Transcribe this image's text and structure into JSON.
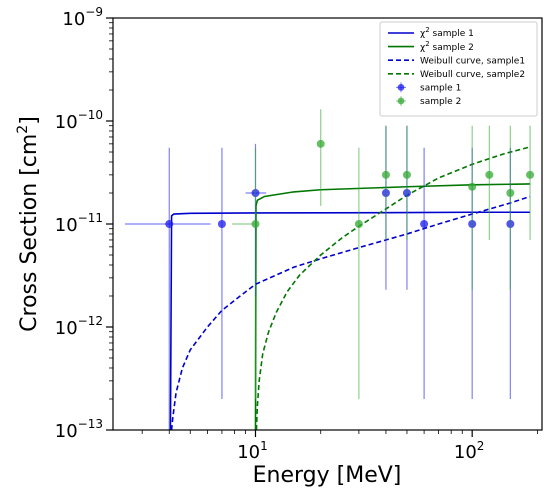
{
  "chart_data": {
    "type": "scatter",
    "xlabel": "Energy [MeV]",
    "ylabel_main": "Cross Section [cm",
    "ylabel_sup": "2",
    "ylabel_end": "]",
    "x_scale": "log",
    "y_scale": "log",
    "xlim": [
      2.2,
      210
    ],
    "ylim": [
      1e-13,
      1e-09
    ],
    "grid": false,
    "legend_position": "top-right",
    "x_ticks": [
      {
        "value": 10,
        "base": "10",
        "exp": "1"
      },
      {
        "value": 100,
        "base": "10",
        "exp": "2"
      }
    ],
    "y_ticks": [
      {
        "value": 1e-13,
        "base": "10",
        "exp": "−13"
      },
      {
        "value": 1e-12,
        "base": "10",
        "exp": "−12"
      },
      {
        "value": 1e-11,
        "base": "10",
        "exp": "−11"
      },
      {
        "value": 1e-10,
        "base": "10",
        "exp": "−10"
      },
      {
        "value": 1e-09,
        "base": "10",
        "exp": "−9"
      }
    ],
    "series": [
      {
        "name": "χ² sample 1",
        "name_parts": [
          "χ",
          "2",
          " sample 1"
        ],
        "kind": "line",
        "style": "solid",
        "color": "#0000cc",
        "x": [
          4.05,
          4.1,
          4.2,
          5,
          10,
          50,
          100,
          185
        ],
        "y": [
          1e-13,
          1.2e-11,
          1.25e-11,
          1.27e-11,
          1.28e-11,
          1.29e-11,
          1.3e-11,
          1.3e-11
        ]
      },
      {
        "name": "χ² sample 2",
        "name_parts": [
          "χ",
          "2",
          " sample 2"
        ],
        "kind": "line",
        "style": "solid",
        "color": "#007700",
        "x": [
          10,
          10.05,
          10.2,
          11,
          15,
          20,
          50,
          100,
          185
        ],
        "y": [
          1e-13,
          1.5e-11,
          1.7e-11,
          1.85e-11,
          2.05e-11,
          2.15e-11,
          2.3e-11,
          2.4e-11,
          2.45e-11
        ]
      },
      {
        "name": "Weibull curve, sample1",
        "kind": "line",
        "style": "dashed",
        "color": "#0000cc",
        "x": [
          4.1,
          4.15,
          4.3,
          4.6,
          5,
          6,
          7,
          8.5,
          10,
          15,
          20,
          30,
          50,
          70,
          100,
          150,
          185
        ],
        "y": [
          1e-13,
          1.3e-13,
          2.3e-13,
          4e-13,
          6e-13,
          1e-12,
          1.45e-12,
          2e-12,
          2.6e-12,
          3.8e-12,
          4.6e-12,
          5.9e-12,
          8e-12,
          1e-11,
          1.25e-11,
          1.6e-11,
          1.85e-11
        ]
      },
      {
        "name": "Weibull curve, sample2",
        "kind": "line",
        "style": "dashed",
        "color": "#007700",
        "x": [
          10.1,
          10.2,
          10.4,
          10.8,
          11.5,
          12.5,
          14,
          16,
          20,
          25,
          30,
          40,
          50,
          70,
          100,
          140,
          185
        ],
        "y": [
          1e-13,
          1.7e-13,
          3e-13,
          5.5e-13,
          9e-13,
          1.4e-12,
          2.2e-12,
          3.2e-12,
          5e-12,
          7.3e-12,
          9.5e-12,
          1.4e-11,
          1.9e-11,
          2.8e-11,
          3.8e-11,
          4.8e-11,
          5.6e-11
        ]
      },
      {
        "name": "sample 1",
        "kind": "points",
        "color": "#1a1aee",
        "points": [
          {
            "x": 4,
            "y": 1e-11,
            "xlo": 2.5,
            "xhi": 6.2,
            "ylo": 1e-13,
            "yhi": 5.5e-11
          },
          {
            "x": 7,
            "y": 1e-11,
            "xlo": 7,
            "xhi": 7,
            "ylo": 2e-13,
            "yhi": 5.5e-11
          },
          {
            "x": 10,
            "y": 2e-11,
            "xlo": 9,
            "xhi": 11.2,
            "ylo": 2e-12,
            "yhi": 6e-11
          },
          {
            "x": 40,
            "y": 2e-11,
            "xlo": 40,
            "xhi": 40,
            "ylo": 2.3e-12,
            "yhi": 9e-11
          },
          {
            "x": 50,
            "y": 2e-11,
            "xlo": 50,
            "xhi": 50,
            "ylo": 2.3e-12,
            "yhi": 9e-11
          },
          {
            "x": 60,
            "y": 1e-11,
            "xlo": 60,
            "xhi": 60,
            "ylo": 2e-13,
            "yhi": 5.5e-11
          },
          {
            "x": 100,
            "y": 1e-11,
            "xlo": 100,
            "xhi": 100,
            "ylo": 2e-13,
            "yhi": 5.5e-11
          },
          {
            "x": 150,
            "y": 1e-11,
            "xlo": 150,
            "xhi": 150,
            "ylo": 2e-13,
            "yhi": 5.5e-11
          }
        ]
      },
      {
        "name": "sample 2",
        "kind": "points",
        "color": "#33aa33",
        "points": [
          {
            "x": 10,
            "y": 1e-11,
            "xlo": 7.8,
            "xhi": 10,
            "ylo": 2e-13,
            "yhi": 5.5e-11
          },
          {
            "x": 20,
            "y": 6e-11,
            "xlo": 20,
            "xhi": 20,
            "ylo": 1.5e-11,
            "yhi": 1.3e-10
          },
          {
            "x": 30,
            "y": 1e-11,
            "xlo": 30,
            "xhi": 30,
            "ylo": 2e-13,
            "yhi": 5.5e-11
          },
          {
            "x": 40,
            "y": 3e-11,
            "xlo": 40,
            "xhi": 40,
            "ylo": 7e-12,
            "yhi": 9e-11
          },
          {
            "x": 50,
            "y": 3e-11,
            "xlo": 50,
            "xhi": 50,
            "ylo": 7e-12,
            "yhi": 9e-11
          },
          {
            "x": 100,
            "y": 2.3e-11,
            "xlo": 100,
            "xhi": 100,
            "ylo": 2.3e-12,
            "yhi": 9e-11
          },
          {
            "x": 120,
            "y": 3e-11,
            "xlo": 120,
            "xhi": 120,
            "ylo": 7e-12,
            "yhi": 9e-11
          },
          {
            "x": 150,
            "y": 2e-11,
            "xlo": 150,
            "xhi": 150,
            "ylo": 2.3e-12,
            "yhi": 9e-11
          },
          {
            "x": 185,
            "y": 3e-11,
            "xlo": 185,
            "xhi": 185,
            "ylo": 7e-12,
            "yhi": 9e-11
          }
        ]
      }
    ]
  }
}
